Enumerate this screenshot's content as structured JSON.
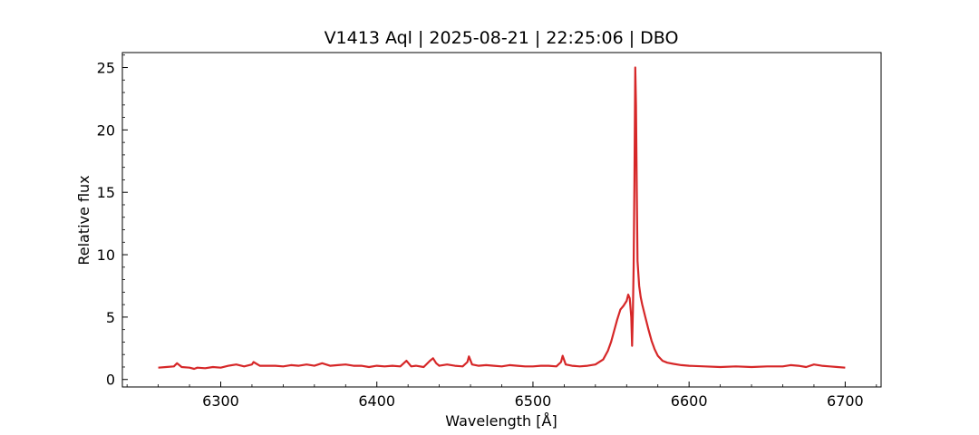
{
  "chart_data": {
    "type": "line",
    "title": "V1413 Aql | 2025-08-21 | 22:25:06 | DBO",
    "xlabel": "Wavelength [Å]",
    "ylabel": "Relative flux",
    "xlim": [
      6237,
      6723
    ],
    "ylim": [
      -0.6,
      26.2
    ],
    "xticks": [
      6300,
      6400,
      6500,
      6600,
      6700
    ],
    "yticks": [
      0,
      5,
      10,
      15,
      20,
      25
    ],
    "grid": false,
    "legend": "none",
    "series": [
      {
        "color": "#d62728",
        "x": [
          6260,
          6265,
          6270,
          6272,
          6275,
          6280,
          6283,
          6285,
          6290,
          6295,
          6300,
          6305,
          6310,
          6315,
          6320,
          6321,
          6325,
          6330,
          6335,
          6340,
          6345,
          6350,
          6355,
          6360,
          6365,
          6370,
          6375,
          6380,
          6385,
          6390,
          6395,
          6400,
          6405,
          6410,
          6415,
          6419,
          6422,
          6425,
          6430,
          6434,
          6436,
          6438,
          6440,
          6445,
          6450,
          6455,
          6458,
          6459,
          6461,
          6465,
          6470,
          6475,
          6480,
          6485,
          6490,
          6495,
          6500,
          6505,
          6510,
          6515,
          6518,
          6519,
          6521,
          6525,
          6530,
          6535,
          6540,
          6545,
          6548,
          6550,
          6552,
          6554,
          6556,
          6558,
          6560,
          6561,
          6562,
          6563,
          6563.5,
          6564,
          6564.5,
          6565,
          6565.5,
          6566,
          6566.5,
          6567,
          6568,
          6569,
          6570,
          6572,
          6574,
          6576,
          6578,
          6580,
          6583,
          6586,
          6590,
          6595,
          6600,
          6610,
          6620,
          6630,
          6640,
          6650,
          6660,
          6665,
          6670,
          6675,
          6680,
          6685,
          6690,
          6695,
          6700
        ],
        "y": [
          0.95,
          1.0,
          1.05,
          1.3,
          1.0,
          0.95,
          0.85,
          0.95,
          0.9,
          1.0,
          0.95,
          1.1,
          1.2,
          1.05,
          1.2,
          1.4,
          1.1,
          1.1,
          1.1,
          1.05,
          1.15,
          1.1,
          1.2,
          1.1,
          1.3,
          1.1,
          1.15,
          1.2,
          1.1,
          1.1,
          1.0,
          1.1,
          1.05,
          1.1,
          1.05,
          1.5,
          1.05,
          1.1,
          1.0,
          1.5,
          1.7,
          1.3,
          1.1,
          1.2,
          1.1,
          1.05,
          1.4,
          1.85,
          1.2,
          1.1,
          1.15,
          1.1,
          1.05,
          1.15,
          1.1,
          1.05,
          1.05,
          1.1,
          1.1,
          1.05,
          1.4,
          1.9,
          1.2,
          1.1,
          1.05,
          1.1,
          1.2,
          1.6,
          2.3,
          3.0,
          3.9,
          4.8,
          5.6,
          5.9,
          6.3,
          6.8,
          6.5,
          5.0,
          2.7,
          5.5,
          9.0,
          16.0,
          25.0,
          22.0,
          15.0,
          9.5,
          7.5,
          6.6,
          6.0,
          5.0,
          4.0,
          3.1,
          2.4,
          1.9,
          1.5,
          1.35,
          1.25,
          1.15,
          1.1,
          1.05,
          1.0,
          1.05,
          1.0,
          1.05,
          1.05,
          1.15,
          1.1,
          1.0,
          1.2,
          1.1,
          1.05,
          1.0,
          0.95
        ]
      }
    ]
  }
}
